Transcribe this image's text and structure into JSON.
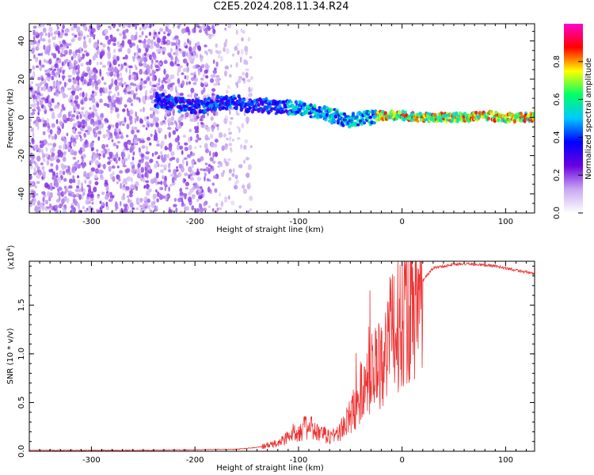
{
  "title": "C2E5.2024.208.11.34.R24",
  "chart_data": [
    {
      "type": "heatmap",
      "xlabel": "Height of straight line (km)",
      "ylabel": "Frequency (Hz)",
      "xlim": [
        -360,
        128
      ],
      "ylim": [
        -50,
        49
      ],
      "xticks": [
        -300,
        -200,
        -100,
        0,
        100
      ],
      "yticks": [
        -40,
        -20,
        0,
        20,
        40
      ],
      "colorbar": {
        "label": "Normalized spectral amplitude",
        "range": [
          0.0,
          1.0
        ],
        "ticks": [
          "0.0",
          "0.2",
          "0.4",
          "0.6",
          "0.8"
        ],
        "colors": [
          "#ffffff",
          "#c8a8f0",
          "#6a00e0",
          "#0000ff",
          "#00c8ff",
          "#00ff66",
          "#ffff00",
          "#ff0000",
          "#ff00cc"
        ]
      },
      "ridge": {
        "x": [
          -235,
          -220,
          -205,
          -190,
          -175,
          -160,
          -145,
          -130,
          -115,
          -100,
          -85,
          -70,
          -60,
          -50,
          -40,
          -30,
          -20,
          -10,
          0,
          20,
          40,
          60,
          80,
          100,
          128
        ],
        "y": [
          9,
          7,
          6,
          6,
          8,
          8,
          6,
          6,
          5,
          5,
          3,
          1,
          0,
          -2,
          0,
          0,
          1,
          1,
          1,
          0,
          0,
          0,
          1,
          0,
          0
        ]
      }
    },
    {
      "type": "line",
      "xlabel": "Height of straight line (km)",
      "ylabel": "SNR (10 * v/v)",
      "ylabel_exponent": "(x10",
      "ylabel_exponent_power": "4",
      "xlim": [
        -360,
        128
      ],
      "ylim": [
        0.0,
        1.95
      ],
      "xticks": [
        -300,
        -200,
        -100,
        0,
        100
      ],
      "yticks": [
        "0.0",
        "0.5",
        "1.0",
        "1.5"
      ],
      "yticks_values": [
        0.0,
        0.5,
        1.0,
        1.5
      ],
      "color": "#ee3333",
      "x": [
        -360,
        -300,
        -250,
        -200,
        -160,
        -140,
        -120,
        -110,
        -100,
        -90,
        -80,
        -70,
        -60,
        -50,
        -40,
        -30,
        -20,
        -10,
        0,
        10,
        20,
        30,
        40,
        50,
        70,
        90,
        110,
        128
      ],
      "y": [
        0.01,
        0.01,
        0.01,
        0.015,
        0.02,
        0.04,
        0.08,
        0.15,
        0.22,
        0.25,
        0.18,
        0.15,
        0.2,
        0.35,
        0.6,
        0.8,
        0.95,
        1.2,
        1.4,
        1.55,
        1.75,
        1.88,
        1.9,
        1.92,
        1.92,
        1.9,
        1.86,
        1.82
      ]
    }
  ]
}
